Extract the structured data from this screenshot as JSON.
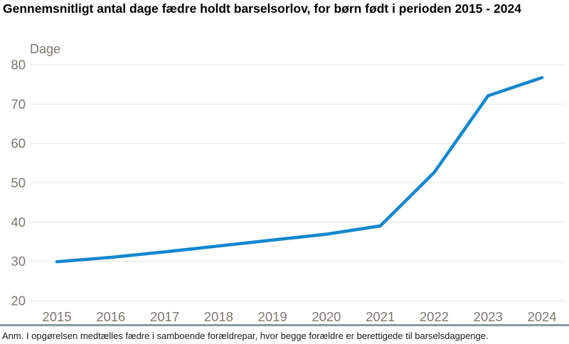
{
  "title": "Gennemsnitligt antal dage fædre holdt barselsorlov, for børn født i perioden 2015 - 2024",
  "footnote": "Anm. I opgørelsen medtælles fædre i samboende forældrepar, hvor begge forældre er berettigede til barselsdagpenge.",
  "colors": {
    "line": "#1287cd",
    "gridline": "#e6e4df",
    "tick_label": "#7b786d",
    "title_text": "#000000",
    "footnote_text": "#1a1a1a",
    "divider": "#8a99a1",
    "background": "#ffffff"
  },
  "chart_data": {
    "type": "line",
    "title": "Gennemsnitligt antal dage fædre holdt barselsorlov, for børn født i perioden 2015 - 2024",
    "xlabel": "",
    "ylabel": "Dage",
    "categories": [
      "2015",
      "2016",
      "2017",
      "2018",
      "2019",
      "2020",
      "2021",
      "2022",
      "2023",
      "2024"
    ],
    "values": [
      29.9,
      31.0,
      32.4,
      33.9,
      35.4,
      36.9,
      39.0,
      52.6,
      72.1,
      76.7
    ],
    "ylim": [
      20,
      80
    ],
    "yticks": [
      20,
      30,
      40,
      50,
      60,
      70,
      80
    ],
    "grid": "horizontal",
    "legend": "none"
  }
}
